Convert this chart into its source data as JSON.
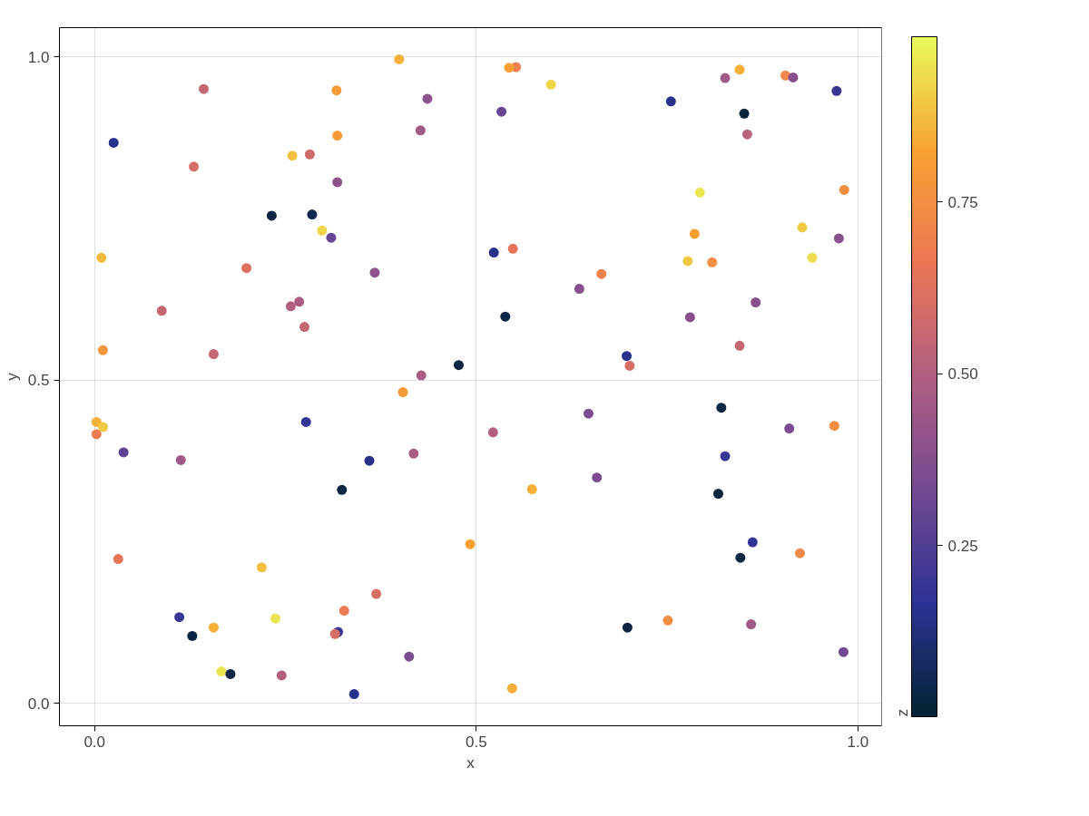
{
  "chart_data": {
    "type": "scatter",
    "xlabel": "x",
    "ylabel": "y",
    "clabel": "z",
    "xlim": [
      -0.046,
      1.031
    ],
    "ylim": [
      -0.035,
      1.045
    ],
    "xticks": [
      {
        "value": 0,
        "label": "0.0"
      },
      {
        "value": 0.5,
        "label": "0.5"
      },
      {
        "value": 1,
        "label": "1.0"
      }
    ],
    "yticks": [
      {
        "value": 0,
        "label": "0.0"
      },
      {
        "value": 0.5,
        "label": "0.5"
      },
      {
        "value": 1,
        "label": "1.0"
      }
    ],
    "clim": [
      0.001,
      0.99
    ],
    "cticks": [
      0.25,
      {
        "value": 0.5,
        "label": "0.50"
      },
      0.75
    ],
    "grid": true,
    "marker": "circle",
    "x": [
      0.399,
      0.552,
      0.543,
      0.598,
      0.143,
      0.317,
      0.436,
      0.755,
      0.851,
      0.533,
      0.826,
      0.845,
      0.905,
      0.915,
      0.972,
      0.025,
      0.427,
      0.318,
      0.855,
      0.259,
      0.282,
      0.13,
      0.318,
      0.793,
      0.982,
      0.232,
      0.285,
      0.298,
      0.31,
      0.927,
      0.786,
      0.975,
      0.009,
      0.523,
      0.548,
      0.94,
      0.777,
      0.809,
      0.199,
      0.367,
      0.664,
      0.635,
      0.866,
      0.268,
      0.257,
      0.088,
      0.538,
      0.78,
      0.275,
      0.845,
      0.011,
      0.156,
      0.697,
      0.477,
      0.701,
      0.428,
      0.404,
      0.821,
      0.647,
      0.277,
      0.0025,
      0.011,
      0.0025,
      0.969,
      0.91,
      0.522,
      0.038,
      0.418,
      0.826,
      0.113,
      0.36,
      0.658,
      0.324,
      0.573,
      0.817,
      0.492,
      0.862,
      0.846,
      0.924,
      0.031,
      0.219,
      0.369,
      0.111,
      0.237,
      0.327,
      0.751,
      0.156,
      0.698,
      0.86,
      0.128,
      0.319,
      0.315,
      0.412,
      0.981,
      0.166,
      0.178,
      0.245,
      0.34,
      0.547
    ],
    "values": [
      0.996,
      0.984,
      0.983,
      0.957,
      0.95,
      0.948,
      0.935,
      0.931,
      0.912,
      0.915,
      0.967,
      0.98,
      0.971,
      0.968,
      0.947,
      0.867,
      0.886,
      0.878,
      0.88,
      0.847,
      0.849,
      0.83,
      0.806,
      0.79,
      0.794,
      0.754,
      0.756,
      0.731,
      0.72,
      0.736,
      0.726,
      0.719,
      0.689,
      0.697,
      0.703,
      0.689,
      0.684,
      0.682,
      0.673,
      0.666,
      0.664,
      0.641,
      0.62,
      0.621,
      0.614,
      0.607,
      0.598,
      0.597,
      0.582,
      0.553,
      0.546,
      0.54,
      0.537,
      0.523,
      0.522,
      0.507,
      0.481,
      0.457,
      0.448,
      0.435,
      0.435,
      0.427,
      0.416,
      0.429,
      0.425,
      0.419,
      0.388,
      0.386,
      0.382,
      0.376,
      0.375,
      0.349,
      0.33,
      0.331,
      0.324,
      0.246,
      0.249,
      0.225,
      0.232,
      0.223,
      0.21,
      0.169,
      0.133,
      0.131,
      0.143,
      0.128,
      0.117,
      0.117,
      0.122,
      0.104,
      0.11,
      0.107,
      0.072,
      0.079,
      0.049,
      0.045,
      0.043,
      0.014,
      0.023
    ],
    "cvalues": [
      0.85,
      0.7,
      0.82,
      0.92,
      0.55,
      0.8,
      0.4,
      0.15,
      0.02,
      0.3,
      0.45,
      0.85,
      0.72,
      0.38,
      0.2,
      0.15,
      0.45,
      0.8,
      0.52,
      0.88,
      0.58,
      0.6,
      0.4,
      0.95,
      0.75,
      0.03,
      0.05,
      0.92,
      0.3,
      0.9,
      0.82,
      0.38,
      0.87,
      0.15,
      0.65,
      0.93,
      0.9,
      0.75,
      0.62,
      0.4,
      0.7,
      0.38,
      0.38,
      0.48,
      0.5,
      0.55,
      0.03,
      0.38,
      0.55,
      0.55,
      0.78,
      0.55,
      0.15,
      0.03,
      0.6,
      0.48,
      0.8,
      0.03,
      0.35,
      0.18,
      0.85,
      0.9,
      0.68,
      0.75,
      0.35,
      0.5,
      0.28,
      0.48,
      0.2,
      0.45,
      0.15,
      0.36,
      0.03,
      0.85,
      0.02,
      0.82,
      0.18,
      0.03,
      0.72,
      0.65,
      0.88,
      0.6,
      0.2,
      0.95,
      0.68,
      0.75,
      0.85,
      0.03,
      0.45,
      0.03,
      0.2,
      0.6,
      0.35,
      0.32,
      0.95,
      0.03,
      0.5,
      0.15,
      0.85
    ]
  }
}
